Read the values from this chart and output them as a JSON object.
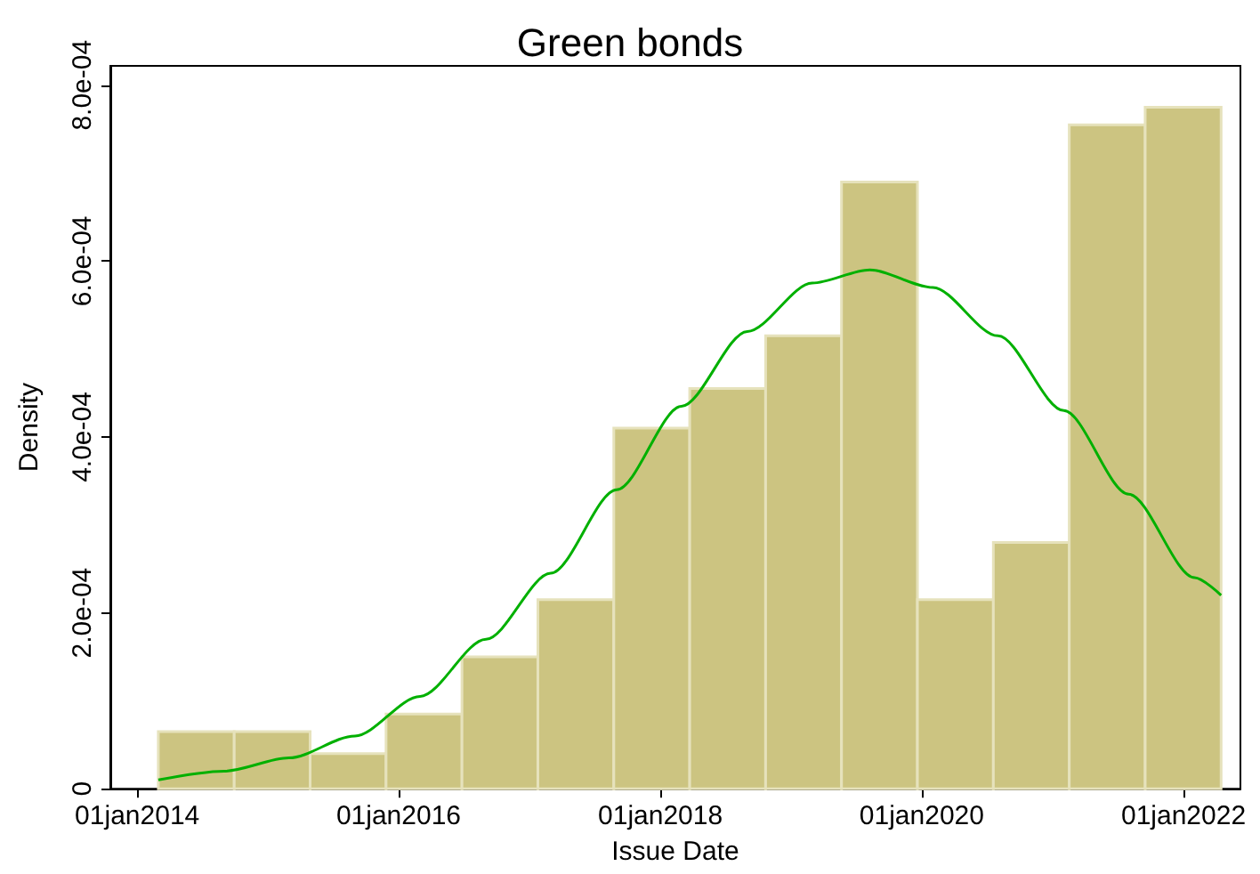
{
  "chart_data": {
    "type": "histogram",
    "title": "Green bonds",
    "xlabel": "Issue Date",
    "ylabel": "Density",
    "bins": [
      "2014-03-01",
      "2014-09-29",
      "2015-04-29",
      "2015-11-27",
      "2016-06-26",
      "2017-01-24",
      "2017-08-24",
      "2018-03-24",
      "2018-10-22",
      "2019-05-22",
      "2019-12-20",
      "2020-07-19",
      "2021-02-16",
      "2021-09-16",
      "2022-04-16"
    ],
    "values": [
      6.5e-05,
      6.5e-05,
      4e-05,
      8.5e-05,
      0.00015,
      0.000215,
      0.00041,
      0.000455,
      0.000515,
      0.00069,
      0.000215,
      0.00028,
      0.000755,
      0.000775
    ],
    "color": "#ccc481",
    "series": [
      {
        "type": "line",
        "color": "#00b000",
        "x": [
          "2014-03-01",
          "2014-09-01",
          "2015-03-01",
          "2015-09-01",
          "2016-03-01",
          "2016-09-01",
          "2017-03-01",
          "2017-09-01",
          "2018-03-01",
          "2018-09-01",
          "2019-03-01",
          "2019-08-09",
          "2020-02-01",
          "2020-08-01",
          "2021-02-01",
          "2021-08-01",
          "2022-02-01",
          "2022-04-16"
        ],
        "values": [
          1e-05,
          2e-05,
          3.5e-05,
          6e-05,
          0.000105,
          0.00017,
          0.000245,
          0.00034,
          0.000435,
          0.00052,
          0.000575,
          0.00059,
          0.00057,
          0.000515,
          0.00043,
          0.000335,
          0.00024,
          0.00022
        ]
      }
    ],
    "xlim": [
      "2013-10-18",
      "2022-06-09"
    ],
    "xticks": [
      {
        "value": "2014-01-01",
        "label": "01jan2014"
      },
      {
        "value": "2016-01-01",
        "label": "01jan2016"
      },
      {
        "value": "2018-01-01",
        "label": "01jan2018"
      },
      {
        "value": "2020-01-01",
        "label": "01jan2020"
      },
      {
        "value": "2022-01-01",
        "label": "01jan2022"
      }
    ],
    "ylim": [
      0,
      0.000822
    ],
    "yticks": [
      0,
      {
        "value": 0.0002,
        "label": "2.0e-04"
      },
      {
        "value": 0.0004,
        "label": "4.0e-04"
      },
      {
        "value": 0.0006,
        "label": "6.0e-04"
      },
      {
        "value": 0.0008,
        "label": "8.0e-04"
      }
    ],
    "grid": false,
    "marker": "none",
    "line_style": "solid"
  }
}
